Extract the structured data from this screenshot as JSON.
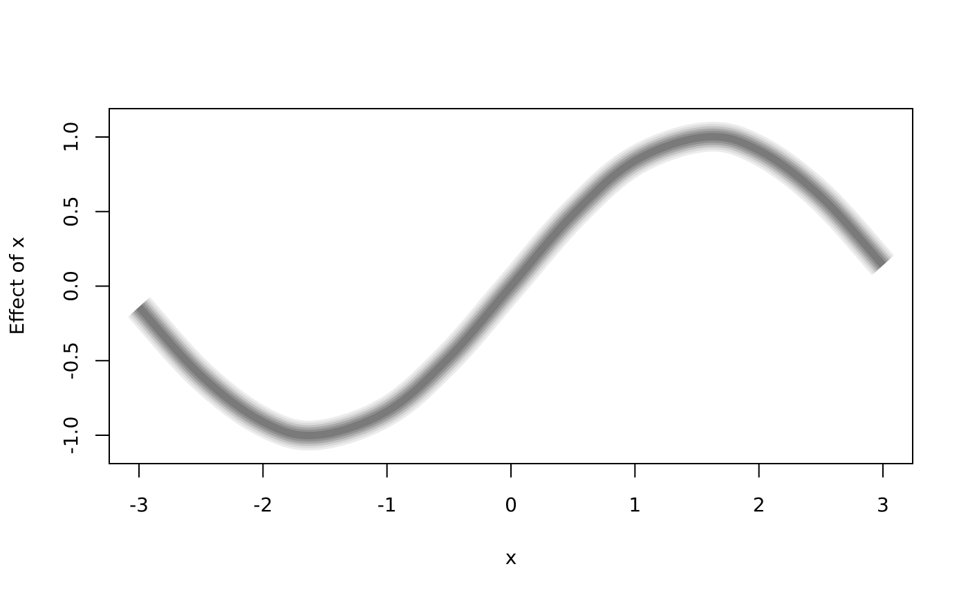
{
  "chart_data": {
    "type": "line",
    "title": "",
    "xlabel": "x",
    "ylabel": "Effect of x",
    "xlim": [
      -3.24,
      3.24
    ],
    "ylim": [
      -1.19,
      1.19
    ],
    "xticks": [
      -3,
      -2,
      -1,
      0,
      1,
      2,
      3
    ],
    "xtick_labels": [
      "-3",
      "-2",
      "-1",
      "0",
      "1",
      "2",
      "3"
    ],
    "yticks": [
      -1.0,
      -0.5,
      0.0,
      0.5,
      1.0
    ],
    "ytick_labels": [
      "-1.0",
      "-0.5",
      "0.0",
      "0.5",
      "1.0"
    ],
    "grid": false,
    "legend": "none",
    "series": [
      {
        "style": "gradient confidence band (darkest at center)",
        "x": [
          -3.0,
          -2.5,
          -2.0,
          -1.57,
          -1.0,
          -0.5,
          0.0,
          0.5,
          1.0,
          1.57,
          2.0,
          2.5,
          3.0
        ],
        "y": [
          -0.14,
          -0.6,
          -0.91,
          -1.0,
          -0.84,
          -0.48,
          0.0,
          0.48,
          0.84,
          1.0,
          0.91,
          0.6,
          0.14
        ],
        "band_halfwidth": 0.1,
        "color": "#7a7a7a"
      }
    ]
  }
}
